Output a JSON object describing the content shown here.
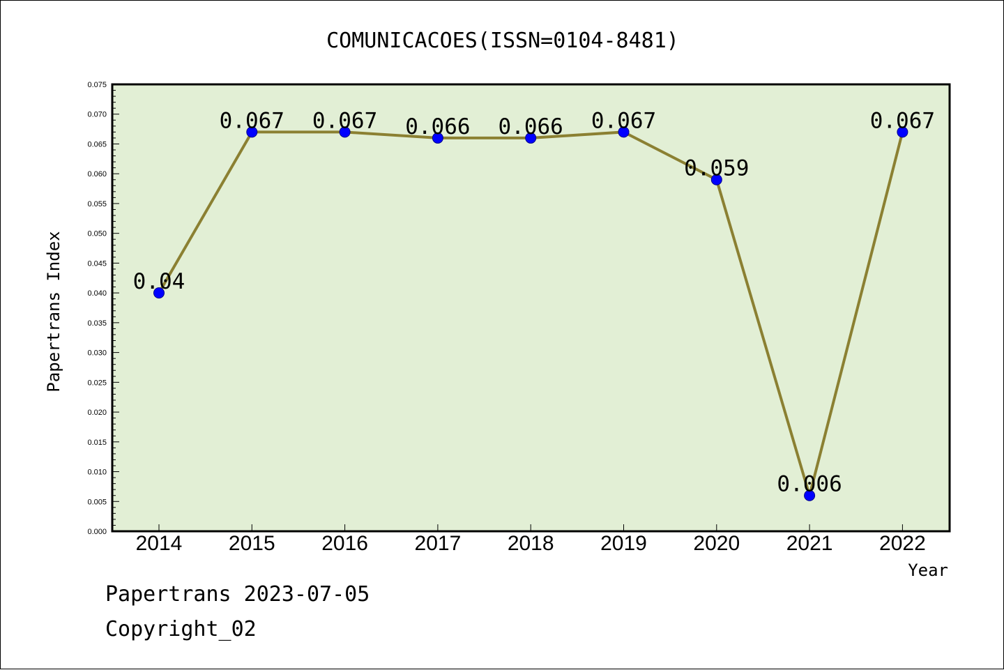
{
  "chart_data": {
    "type": "line",
    "title": "COMUNICACOES(ISSN=0104-8481)",
    "xlabel": "Year",
    "ylabel": "Papertrans Index",
    "categories": [
      "2014",
      "2015",
      "2016",
      "2017",
      "2018",
      "2019",
      "2020",
      "2021",
      "2022"
    ],
    "values": [
      0.04,
      0.067,
      0.067,
      0.066,
      0.066,
      0.067,
      0.059,
      0.006,
      0.067
    ],
    "data_labels": [
      "0.04",
      "0.067",
      "0.067",
      "0.066",
      "0.066",
      "0.067",
      "0.059",
      "0.006",
      "0.067"
    ],
    "ylim": [
      0,
      0.075
    ],
    "y_ticks": [
      "0.000",
      "0.005",
      "0.010",
      "0.015",
      "0.020",
      "0.025",
      "0.030",
      "0.035",
      "0.040",
      "0.045",
      "0.050",
      "0.055",
      "0.060",
      "0.065",
      "0.070",
      "0.075"
    ],
    "grid": false,
    "colors": {
      "plot_background": "#e2efd5",
      "line": "#8b8032",
      "marker": "#0000ff"
    }
  },
  "footer": {
    "date_line": "Papertrans 2023-07-05",
    "copyright": "Copyright_02"
  }
}
